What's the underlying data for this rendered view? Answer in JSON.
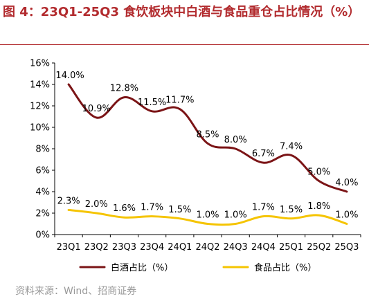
{
  "title": "图 4：23Q1-25Q3 食饮板块中白酒与食品重仓占比情况（%）",
  "source": "资料来源：Wind、招商证券",
  "colors": {
    "title": "#b22b2e",
    "baijiu": "#7b1416",
    "food": "#f5c400",
    "axis": "#000000"
  },
  "chart_data": {
    "type": "line",
    "title": "",
    "xlabel": "",
    "ylabel": "",
    "categories": [
      "23Q1",
      "23Q2",
      "23Q3",
      "23Q4",
      "24Q1",
      "24Q2",
      "24Q3",
      "24Q4",
      "25Q1",
      "25Q2",
      "25Q3"
    ],
    "ylim": [
      0,
      16
    ],
    "yticks": [
      "0%",
      "2%",
      "4%",
      "6%",
      "8%",
      "10%",
      "12%",
      "14%",
      "16%"
    ],
    "grid": false,
    "legend_position": "bottom",
    "series": [
      {
        "name": "白酒占比（%）",
        "color": "#7b1416",
        "values": [
          14.0,
          10.9,
          12.8,
          11.5,
          11.7,
          8.5,
          8.0,
          6.7,
          7.4,
          5.0,
          4.0
        ],
        "labels": [
          "14.0%",
          "10.9%",
          "12.8%",
          "11.5%",
          "11.7%",
          "8.5%",
          "8.0%",
          "6.7%",
          "7.4%",
          "5.0%",
          "4.0%"
        ]
      },
      {
        "name": "食品占比（%）",
        "color": "#f5c400",
        "values": [
          2.3,
          2.0,
          1.6,
          1.7,
          1.5,
          1.0,
          1.0,
          1.7,
          1.5,
          1.8,
          1.0
        ],
        "labels": [
          "2.3%",
          "2.0%",
          "1.6%",
          "1.7%",
          "1.5%",
          "1.0%",
          "1.0%",
          "1.7%",
          "1.5%",
          "1.8%",
          "1.0%"
        ]
      }
    ]
  }
}
